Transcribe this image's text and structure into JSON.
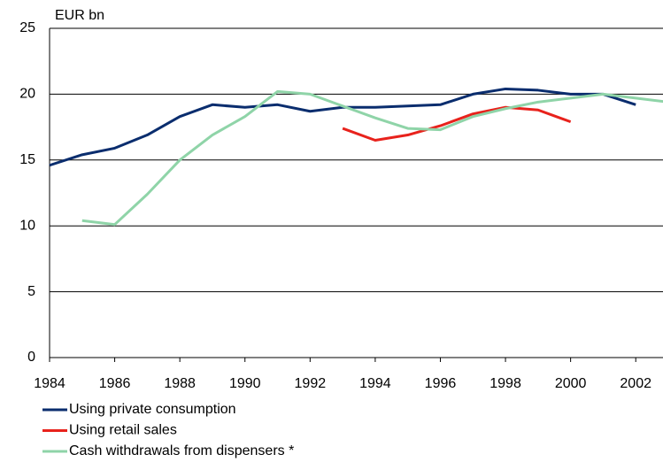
{
  "chart_data": {
    "type": "line",
    "y_axis_label": "EUR bn",
    "x": [
      1984,
      1985,
      1986,
      1987,
      1988,
      1989,
      1990,
      1991,
      1992,
      1993,
      1994,
      1995,
      1996,
      1997,
      1998,
      1999,
      2000,
      2001,
      2002,
      2003
    ],
    "series": [
      {
        "name": "Using private consumption",
        "color": "#0a2d6e",
        "values": [
          14.6,
          15.4,
          15.9,
          16.9,
          18.3,
          19.2,
          19.0,
          19.2,
          18.7,
          19.0,
          19.0,
          19.1,
          19.2,
          20.0,
          20.4,
          20.3,
          20.0,
          20.0,
          19.2,
          null
        ]
      },
      {
        "name": "Using retail sales",
        "color": "#e8221c",
        "values": [
          null,
          null,
          null,
          null,
          null,
          null,
          null,
          null,
          null,
          17.4,
          16.5,
          16.9,
          17.6,
          18.5,
          19.0,
          18.8,
          17.9,
          null,
          null,
          null
        ]
      },
      {
        "name": "Cash withdrawals from dispensers *",
        "color": "#8fd4a8",
        "values": [
          null,
          10.4,
          10.1,
          12.4,
          15.0,
          16.9,
          18.3,
          20.2,
          20.0,
          19.1,
          18.2,
          17.4,
          17.3,
          18.3,
          18.9,
          19.4,
          19.7,
          20.0,
          19.7,
          19.4
        ]
      }
    ],
    "xlim": [
      1984,
      2003
    ],
    "xticks": [
      1984,
      1986,
      1988,
      1990,
      1992,
      1994,
      1996,
      1998,
      2000,
      2002
    ],
    "ylim": [
      0,
      25
    ],
    "yticks": [
      0,
      5,
      10,
      15,
      20,
      25
    ],
    "grid": true,
    "legend": "bottom"
  }
}
